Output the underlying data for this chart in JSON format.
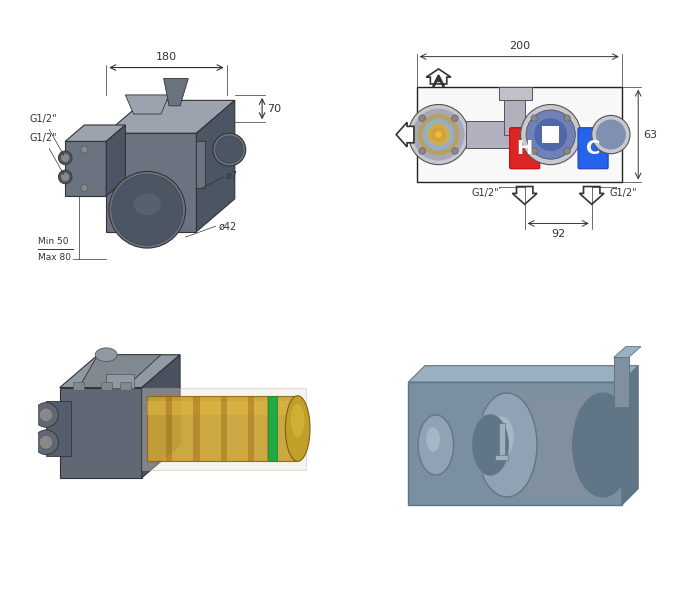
{
  "bg_color": "#ffffff",
  "line_color": "#222222",
  "dim_color": "#333333",
  "body_color": "#6b7280",
  "body_dark": "#4b5563",
  "body_light": "#9ca3af",
  "body_highlight": "#d1d5db",
  "red_color": "#dc2626",
  "blue_color": "#2563eb",
  "dim_180": "180",
  "dim_70": "70",
  "dim_d7": "ø7",
  "dim_d42": "ø42",
  "dim_min50": "Min 50",
  "dim_max80": "Max 80",
  "dim_g12": "G1/2\"",
  "dim_200": "200",
  "dim_63": "63",
  "dim_92": "92"
}
